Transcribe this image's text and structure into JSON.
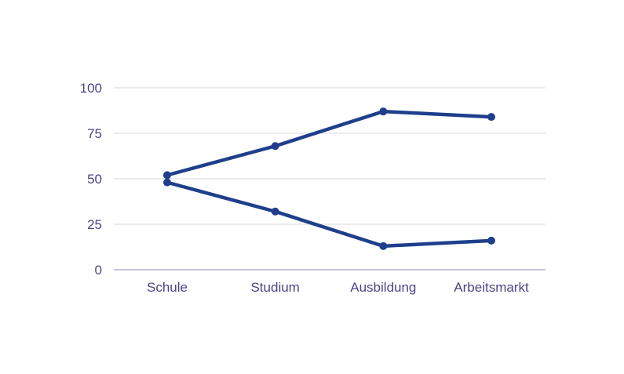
{
  "chart_data": {
    "type": "line",
    "title": "",
    "xlabel": "",
    "ylabel": "",
    "categories": [
      "Schule",
      "Studium",
      "Ausbildung",
      "Arbeitsmarkt"
    ],
    "ylim": [
      0,
      100
    ],
    "yticks": [
      0,
      25,
      50,
      75,
      100
    ],
    "grid": true,
    "legend": "none",
    "series": [
      {
        "values": [
          52,
          68,
          87,
          84
        ]
      },
      {
        "values": [
          48,
          32,
          13,
          16
        ]
      }
    ],
    "colors": {
      "series": "#1f3f8c",
      "grid": "#d9d9df",
      "axis": "#b4b1cf",
      "text": "#4a4585"
    }
  }
}
